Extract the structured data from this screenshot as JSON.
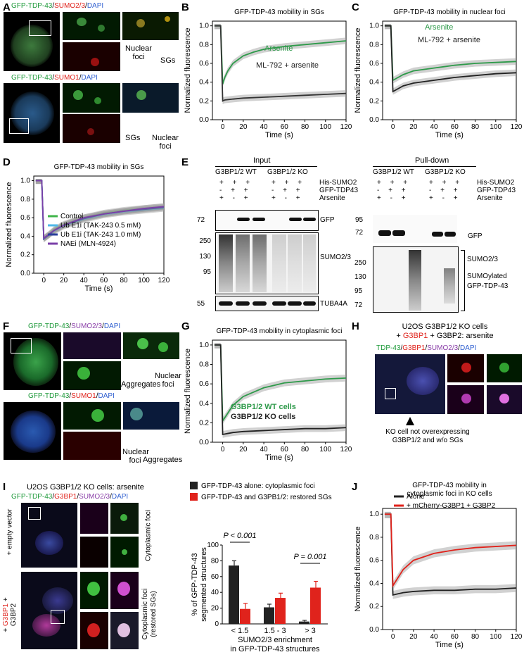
{
  "panels": {
    "A": {
      "letter": "A",
      "top_label": [
        "GFP-TDP-43",
        "/",
        "SUMO2/3",
        "/",
        "DAPI"
      ],
      "bottom_label": [
        "GFP-TDP-43",
        "/",
        "SUMO1",
        "/",
        "DAPI"
      ],
      "top_arrows": [
        "Nuclear foci",
        "SGs"
      ],
      "bottom_arrows": [
        "SGs",
        "Nuclear foci"
      ]
    },
    "B": {
      "letter": "B",
      "title": "GFP-TDP-43 mobility in SGs",
      "xlabel": "Time (s)",
      "ylabel": "Normalized fluorescence",
      "legend": [
        "Arsenite",
        "ML-792 + arsenite"
      ]
    },
    "C": {
      "letter": "C",
      "title": "GFP-TDP-43 mobility in nuclear foci",
      "xlabel": "Time (s)",
      "ylabel": "Normalized fluorescence",
      "legend": [
        "Arsenite",
        "ML-792 + arsenite"
      ]
    },
    "D": {
      "letter": "D",
      "title": "GFP-TDP-43 mobility in SGs",
      "xlabel": "Time (s)",
      "ylabel": "Normalized fluorescence",
      "legend": [
        "Control",
        "Ub E1i (TAK-243 0.5 mM)",
        "Ub E1i (TAK-243 1.0 mM)",
        "NAEi (MLN-4924)"
      ]
    },
    "E": {
      "letter": "E",
      "input_title": "Input",
      "pulldown_title": "Pull-down",
      "groups": [
        "G3BP1/2 WT",
        "G3BP1/2 KO"
      ],
      "rows": [
        "His-SUMO2",
        "GFP-TDP43",
        "Arsenite"
      ],
      "signs_input": [
        "+ + +",
        "- + +",
        "+ - +"
      ],
      "input_mw_gfp": [
        "72"
      ],
      "input_mw_sumo": [
        "250",
        "130",
        "95"
      ],
      "input_mw_tub": [
        "55"
      ],
      "input_blots": [
        "GFP",
        "SUMO2/3",
        "TUBA4A"
      ],
      "pd_mw_gfp": [
        "95",
        "72"
      ],
      "pd_mw_sumo": [
        "250",
        "130",
        "95",
        "72"
      ],
      "pd_blots": [
        "GFP",
        "SUMO2/3",
        "SUMOylated",
        "GFP-TDP-43"
      ]
    },
    "F": {
      "letter": "F",
      "top_label": [
        "GFP-TDP-43",
        "/",
        "SUMO2/3",
        "/",
        "DAPI"
      ],
      "bottom_label": [
        "GFP-TDP-43",
        "/",
        "SUMO1",
        "/",
        "DAPI"
      ],
      "top_arrows": [
        "Aggregates",
        "Nuclear foci"
      ],
      "bottom_arrows": [
        "Nuclear foci",
        "Aggregates"
      ]
    },
    "G": {
      "letter": "G",
      "title": "GFP-TDP-43 mobility in cytoplasmic foci",
      "xlabel": "Time (s)",
      "ylabel": "Normalized fluorescence",
      "legend": [
        "G3BP1/2 WT cells",
        "G3BP1/2 KO cells"
      ]
    },
    "H": {
      "letter": "H",
      "title_line1": "U2OS G3BP1/2 KO cells",
      "title_line2_parts": [
        "+ ",
        "G3BP1",
        " + G3BP2: arsenite"
      ],
      "stain": [
        "TDP-43",
        "/",
        "G3BP1",
        "/",
        "SUMO2/3",
        "/",
        "DAPI"
      ],
      "note": "KO cell not overexpressing G3BP1/2 and w/o SGs"
    },
    "I": {
      "letter": "I",
      "title": "U2OS G3BP1/2 KO cells: arsenite",
      "stain": [
        "GFP-TDP-43",
        "/",
        "G3BP1",
        "/",
        "SUMO2/3",
        "/",
        "DAPI"
      ],
      "row1_side": "+ empty vector",
      "row1_right": "Cytoplasmic foci",
      "row2_side_parts": [
        "+ ",
        "G3BP1",
        " + G3BP2"
      ],
      "row2_right": "Cytoplasmic foci (restored SGs)",
      "bar_legend": [
        "GFP-TDP-43 alone: cytoplasmic foci",
        "GFP-TDP-43 and G3PB1/2: restored SGs"
      ],
      "ylabel": "% of GFP-TDP-43 segmented structures",
      "xlabel": "SUMO2/3 enrichment in GFP-TDP-43 structures",
      "pvals": [
        "P < 0.001",
        "P = 0.001"
      ]
    },
    "J": {
      "letter": "J",
      "title": "GFP-TDP-43 mobility in cytoplasmic foci in KO cells",
      "xlabel": "Time (s)",
      "ylabel": "Normalized fluorescence",
      "legend": [
        "Alone",
        "+ mCherry-G3BP1 + G3BP2"
      ]
    }
  },
  "chart_data": [
    {
      "id": "B",
      "type": "line",
      "title": "GFP-TDP-43 mobility in SGs",
      "xlabel": "Time (s)",
      "ylabel": "Normalized fluorescence",
      "xlim": [
        -10,
        120
      ],
      "ylim": [
        0,
        1.05
      ],
      "xticks": [
        0,
        20,
        40,
        60,
        80,
        100,
        120
      ],
      "yticks": [
        0.0,
        0.2,
        0.4,
        0.6,
        0.8,
        1.0
      ],
      "series": [
        {
          "name": "Arsenite",
          "color": "#2e9a4a",
          "x": [
            -8,
            -2,
            0,
            2,
            5,
            10,
            20,
            30,
            40,
            60,
            80,
            100,
            120
          ],
          "y": [
            1.0,
            1.0,
            0.38,
            0.45,
            0.52,
            0.6,
            0.68,
            0.72,
            0.75,
            0.78,
            0.8,
            0.82,
            0.84
          ]
        },
        {
          "name": "ML-792 + arsenite",
          "color": "#333333",
          "x": [
            -8,
            -2,
            0,
            2,
            10,
            20,
            40,
            60,
            80,
            100,
            120
          ],
          "y": [
            1.0,
            1.0,
            0.2,
            0.21,
            0.22,
            0.23,
            0.24,
            0.25,
            0.26,
            0.27,
            0.28
          ]
        }
      ]
    },
    {
      "id": "C",
      "type": "line",
      "title": "GFP-TDP-43 mobility in nuclear foci",
      "xlabel": "Time (s)",
      "ylabel": "Normalized fluorescence",
      "xlim": [
        -10,
        120
      ],
      "ylim": [
        0,
        1.05
      ],
      "xticks": [
        0,
        20,
        40,
        60,
        80,
        100,
        120
      ],
      "yticks": [
        0.0,
        0.2,
        0.4,
        0.6,
        0.8,
        1.0
      ],
      "series": [
        {
          "name": "Arsenite",
          "color": "#2e9a4a",
          "x": [
            -8,
            -2,
            0,
            5,
            10,
            20,
            40,
            60,
            80,
            100,
            120
          ],
          "y": [
            1.0,
            1.0,
            0.42,
            0.45,
            0.48,
            0.52,
            0.55,
            0.58,
            0.6,
            0.61,
            0.62
          ]
        },
        {
          "name": "ML-792 + arsenite",
          "color": "#222222",
          "x": [
            -8,
            -2,
            0,
            5,
            10,
            20,
            40,
            60,
            80,
            100,
            120
          ],
          "y": [
            1.0,
            1.0,
            0.3,
            0.33,
            0.36,
            0.39,
            0.42,
            0.45,
            0.47,
            0.49,
            0.5
          ]
        }
      ]
    },
    {
      "id": "D",
      "type": "line",
      "title": "GFP-TDP-43 mobility in SGs",
      "xlabel": "Time (s)",
      "ylabel": "Normalized fluorescence",
      "xlim": [
        -10,
        120
      ],
      "ylim": [
        0.0,
        1.05
      ],
      "xticks": [
        0,
        20,
        40,
        60,
        80,
        100,
        120
      ],
      "yticks": [
        0.0,
        0.2,
        0.4,
        0.6,
        0.8,
        1.0
      ],
      "series": [
        {
          "name": "Control",
          "color": "#3fb54a",
          "x": [
            -8,
            -2,
            0,
            5,
            10,
            20,
            40,
            60,
            80,
            100,
            120
          ],
          "y": [
            1.0,
            1.0,
            0.38,
            0.42,
            0.47,
            0.53,
            0.6,
            0.65,
            0.68,
            0.7,
            0.72
          ]
        },
        {
          "name": "Ub E1i (TAK-243 0.5 mM)",
          "color": "#4fb8e8",
          "x": [
            -8,
            -2,
            0,
            5,
            10,
            20,
            40,
            60,
            80,
            100,
            120
          ],
          "y": [
            1.0,
            1.0,
            0.37,
            0.41,
            0.45,
            0.51,
            0.58,
            0.63,
            0.66,
            0.68,
            0.7
          ]
        },
        {
          "name": "Ub E1i (TAK-243 1.0 mM)",
          "color": "#2a3f9c",
          "x": [
            -8,
            -2,
            0,
            5,
            10,
            20,
            40,
            60,
            80,
            100,
            120
          ],
          "y": [
            1.0,
            1.0,
            0.37,
            0.41,
            0.46,
            0.52,
            0.59,
            0.64,
            0.67,
            0.69,
            0.71
          ]
        },
        {
          "name": "NAEi (MLN-4924)",
          "color": "#7a3fa8",
          "x": [
            -8,
            -2,
            0,
            5,
            10,
            20,
            40,
            60,
            80,
            100,
            120
          ],
          "y": [
            1.0,
            1.0,
            0.38,
            0.42,
            0.46,
            0.52,
            0.6,
            0.64,
            0.67,
            0.7,
            0.72
          ]
        }
      ]
    },
    {
      "id": "G",
      "type": "line",
      "title": "GFP-TDP-43 mobility in cytoplasmic foci",
      "xlabel": "Time (s)",
      "ylabel": "Normalized fluorescence",
      "xlim": [
        -10,
        120
      ],
      "ylim": [
        0,
        1.05
      ],
      "xticks": [
        0,
        20,
        40,
        60,
        80,
        100,
        120
      ],
      "yticks": [
        0.0,
        0.2,
        0.4,
        0.6,
        0.8,
        1.0
      ],
      "series": [
        {
          "name": "G3BP1/2 WT cells",
          "color": "#2e9a4a",
          "x": [
            -8,
            -2,
            0,
            5,
            10,
            20,
            40,
            60,
            80,
            100,
            120
          ],
          "y": [
            1.0,
            1.0,
            0.22,
            0.3,
            0.38,
            0.47,
            0.56,
            0.61,
            0.63,
            0.65,
            0.66
          ]
        },
        {
          "name": "G3BP1/2 KO cells",
          "color": "#222222",
          "x": [
            -8,
            -2,
            0,
            5,
            10,
            20,
            40,
            60,
            80,
            100,
            120
          ],
          "y": [
            1.0,
            1.0,
            0.08,
            0.09,
            0.1,
            0.11,
            0.12,
            0.13,
            0.14,
            0.14,
            0.15
          ]
        }
      ]
    },
    {
      "id": "I",
      "type": "bar",
      "ylabel": "% of GFP-TDP-43 segmented structures",
      "xlabel": "SUMO2/3 enrichment in GFP-TDP-43 structures",
      "categories": [
        "< 1.5",
        "1.5 - 3",
        "> 3"
      ],
      "ylim": [
        0,
        100
      ],
      "yticks": [
        0,
        20,
        40,
        60,
        80,
        100
      ],
      "series": [
        {
          "name": "GFP-TDP-43 alone: cytoplasmic foci",
          "color": "#222222",
          "values": [
            74,
            21,
            3
          ],
          "errors": [
            6,
            4,
            1.5
          ]
        },
        {
          "name": "GFP-TDP-43 and G3PB1/2: restored SGs",
          "color": "#e0231c",
          "values": [
            19,
            33,
            46
          ],
          "errors": [
            7,
            6,
            8
          ]
        }
      ]
    },
    {
      "id": "J",
      "type": "line",
      "title": "GFP-TDP-43 mobility in cytoplasmic foci in KO cells",
      "xlabel": "Time (s)",
      "ylabel": "Normalized fluorescence",
      "xlim": [
        -10,
        120
      ],
      "ylim": [
        0,
        1.05
      ],
      "xticks": [
        0,
        20,
        40,
        60,
        80,
        100,
        120
      ],
      "yticks": [
        0.0,
        0.2,
        0.4,
        0.6,
        0.8,
        1.0
      ],
      "series": [
        {
          "name": "Alone",
          "color": "#222222",
          "x": [
            -8,
            -2,
            0,
            5,
            10,
            20,
            40,
            60,
            80,
            100,
            120
          ],
          "y": [
            1.0,
            1.0,
            0.3,
            0.31,
            0.32,
            0.33,
            0.34,
            0.34,
            0.35,
            0.35,
            0.36
          ]
        },
        {
          "name": "+ mCherry-G3BP1 + G3BP2",
          "color": "#e0231c",
          "x": [
            -8,
            -2,
            0,
            5,
            10,
            20,
            40,
            60,
            80,
            100,
            120
          ],
          "y": [
            1.0,
            1.0,
            0.38,
            0.45,
            0.52,
            0.6,
            0.66,
            0.69,
            0.71,
            0.72,
            0.73
          ]
        }
      ]
    }
  ]
}
